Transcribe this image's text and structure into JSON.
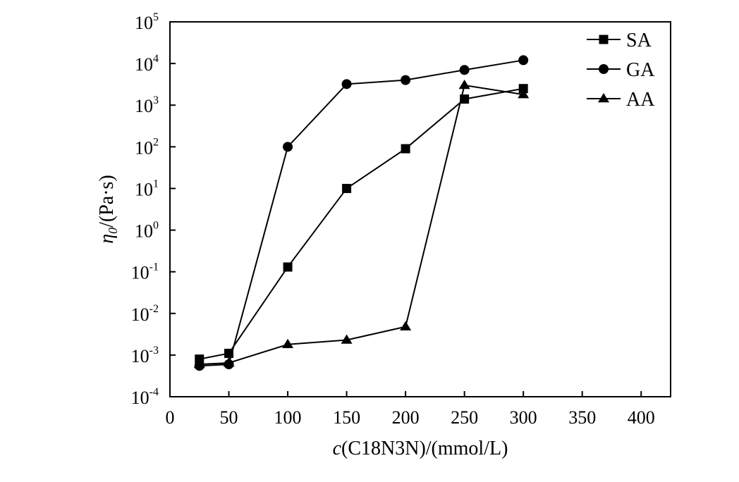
{
  "chart_data": {
    "type": "line",
    "yscale": "log",
    "xlim": [
      0,
      425
    ],
    "ylim_exp": [
      -4,
      5
    ],
    "x_ticks": [
      0,
      50,
      100,
      150,
      200,
      250,
      300,
      350,
      400
    ],
    "y_ticks": [
      {
        "base": "10",
        "exp": "-4"
      },
      {
        "base": "10",
        "exp": "-3"
      },
      {
        "base": "10",
        "exp": "-2"
      },
      {
        "base": "10",
        "exp": "-1"
      },
      {
        "base": "10",
        "exp": "0"
      },
      {
        "base": "10",
        "exp": "1"
      },
      {
        "base": "10",
        "exp": "2"
      },
      {
        "base": "10",
        "exp": "3"
      },
      {
        "base": "10",
        "exp": "4"
      },
      {
        "base": "10",
        "exp": "5"
      }
    ],
    "xlabel": {
      "var": "c",
      "rest": "(C18N3N)/(mmol/L)"
    },
    "ylabel": {
      "var": "η",
      "sub": "0",
      "rest": "/(Pa·s)"
    },
    "legend": "top-right",
    "grid": false,
    "series": [
      {
        "name": "SA",
        "marker": "square",
        "x": [
          25,
          50,
          100,
          150,
          200,
          250,
          300
        ],
        "y": [
          0.0008,
          0.0011,
          0.13,
          10,
          90,
          1400,
          2500
        ]
      },
      {
        "name": "GA",
        "marker": "circle",
        "x": [
          25,
          50,
          100,
          150,
          200,
          250,
          300
        ],
        "y": [
          0.00055,
          0.0006,
          100,
          3200,
          4000,
          7000,
          12000
        ]
      },
      {
        "name": "AA",
        "marker": "triangle",
        "x": [
          25,
          50,
          100,
          150,
          200,
          250,
          300
        ],
        "y": [
          0.0006,
          0.00065,
          0.0018,
          0.0023,
          0.0048,
          3000,
          1800
        ]
      }
    ]
  }
}
